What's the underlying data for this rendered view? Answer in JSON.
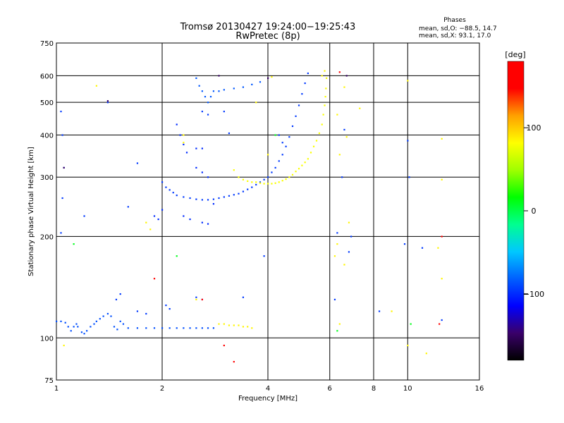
{
  "chart_data": {
    "type": "scatter",
    "title": "Tromsø 20130427 19:24:00−19:25:43",
    "subtitle": "RwPretec (8p)",
    "xlabel": "Frequency [MHz]",
    "ylabel": "Stationary phase Virtual Height [km]",
    "x_scale": "log",
    "y_scale": "log",
    "xlim": [
      1,
      16
    ],
    "ylim": [
      75,
      750
    ],
    "x_ticks": [
      {
        "value": 1,
        "label": "1"
      },
      {
        "value": 2,
        "label": "2"
      },
      {
        "value": 4,
        "label": "4"
      },
      {
        "value": 6,
        "label": "6"
      },
      {
        "value": 8,
        "label": "8"
      },
      {
        "value": 10,
        "label": "10"
      },
      {
        "value": 16,
        "label": "16"
      }
    ],
    "y_ticks": [
      {
        "value": 75,
        "label": "75"
      },
      {
        "value": 100,
        "label": "100"
      },
      {
        "value": 200,
        "label": "200"
      },
      {
        "value": 300,
        "label": "300"
      },
      {
        "value": 400,
        "label": "400"
      },
      {
        "value": 500,
        "label": "500"
      },
      {
        "value": 600,
        "label": "600"
      },
      {
        "value": 750,
        "label": "750"
      }
    ],
    "grid": true,
    "phase_info": {
      "heading": "Phases",
      "line_o": "mean, sd,O: −88.5, 14.7",
      "line_x": "mean, sd,X:  93.1, 17.0"
    },
    "colorbar": {
      "label": "[deg]",
      "range": [
        -180,
        180
      ],
      "ticks": [
        {
          "value": 100,
          "label": "100"
        },
        {
          "value": 0,
          "label": "0"
        },
        {
          "value": -100,
          "label": "−100"
        }
      ],
      "stops": [
        "#000000",
        "#3a006a",
        "#0000ff",
        "#0060ff",
        "#00c8ff",
        "#00ff90",
        "#00ff00",
        "#a0ff00",
        "#ffff00",
        "#ffa000",
        "#ff0000",
        "#ff0000"
      ]
    },
    "series": [
      {
        "phase": -88,
        "points": [
          [
            1.0,
            112
          ],
          [
            1.03,
            112
          ],
          [
            1.06,
            111
          ],
          [
            1.08,
            108
          ],
          [
            1.1,
            105
          ],
          [
            1.12,
            108
          ],
          [
            1.14,
            110
          ],
          [
            1.15,
            108
          ],
          [
            1.18,
            104
          ],
          [
            1.2,
            103
          ],
          [
            1.22,
            105
          ],
          [
            1.25,
            108
          ],
          [
            1.28,
            110
          ],
          [
            1.3,
            112
          ],
          [
            1.33,
            114
          ],
          [
            1.36,
            116
          ],
          [
            1.4,
            118
          ],
          [
            1.43,
            116
          ],
          [
            1.46,
            108
          ],
          [
            1.49,
            106
          ],
          [
            1.52,
            112
          ],
          [
            1.55,
            110
          ],
          [
            1.6,
            107
          ],
          [
            1.7,
            107
          ],
          [
            1.8,
            107
          ],
          [
            1.9,
            107
          ],
          [
            2.0,
            107
          ],
          [
            2.1,
            107
          ],
          [
            2.2,
            107
          ],
          [
            2.3,
            107
          ],
          [
            2.4,
            107
          ],
          [
            2.5,
            107
          ],
          [
            2.6,
            107
          ],
          [
            2.7,
            107
          ],
          [
            2.8,
            107
          ]
        ]
      },
      {
        "phase": -95,
        "points": [
          [
            1.48,
            130
          ],
          [
            1.52,
            135
          ],
          [
            1.7,
            120
          ],
          [
            1.8,
            118
          ],
          [
            2.05,
            125
          ],
          [
            2.1,
            122
          ],
          [
            2.5,
            132
          ],
          [
            2.6,
            130
          ],
          [
            3.4,
            132
          ]
        ]
      },
      {
        "phase": -95,
        "points": [
          [
            2.0,
            290
          ],
          [
            2.05,
            280
          ],
          [
            2.1,
            275
          ],
          [
            2.15,
            270
          ],
          [
            2.2,
            265
          ],
          [
            2.3,
            262
          ],
          [
            2.4,
            260
          ],
          [
            2.5,
            258
          ],
          [
            2.6,
            257
          ],
          [
            2.7,
            257
          ],
          [
            2.8,
            258
          ],
          [
            2.9,
            260
          ],
          [
            3.0,
            262
          ],
          [
            3.1,
            264
          ],
          [
            3.2,
            266
          ],
          [
            3.3,
            268
          ],
          [
            3.4,
            272
          ],
          [
            3.5,
            276
          ],
          [
            3.6,
            280
          ],
          [
            3.7,
            285
          ],
          [
            3.8,
            290
          ],
          [
            3.9,
            295
          ],
          [
            4.0,
            300
          ],
          [
            4.1,
            310
          ],
          [
            4.2,
            320
          ],
          [
            4.3,
            335
          ],
          [
            4.4,
            350
          ],
          [
            4.5,
            370
          ],
          [
            4.6,
            395
          ],
          [
            4.7,
            425
          ],
          [
            4.8,
            455
          ],
          [
            4.9,
            490
          ],
          [
            5.0,
            530
          ],
          [
            5.1,
            570
          ],
          [
            5.2,
            610
          ]
        ]
      },
      {
        "phase": -85,
        "points": [
          [
            2.5,
            590
          ],
          [
            2.55,
            560
          ],
          [
            2.6,
            540
          ],
          [
            2.65,
            520
          ],
          [
            2.7,
            500
          ],
          [
            2.75,
            520
          ],
          [
            2.8,
            540
          ],
          [
            2.9,
            540
          ],
          [
            3.0,
            545
          ],
          [
            3.2,
            550
          ],
          [
            3.4,
            555
          ],
          [
            3.6,
            565
          ],
          [
            3.8,
            575
          ]
        ]
      },
      {
        "phase": -100,
        "points": [
          [
            2.2,
            430
          ],
          [
            2.25,
            400
          ],
          [
            2.3,
            375
          ],
          [
            2.35,
            355
          ],
          [
            2.5,
            365
          ],
          [
            2.6,
            365
          ],
          [
            2.5,
            320
          ],
          [
            2.6,
            310
          ],
          [
            2.7,
            300
          ],
          [
            2.3,
            230
          ],
          [
            2.4,
            225
          ],
          [
            2.6,
            220
          ],
          [
            2.7,
            218
          ],
          [
            1.9,
            230
          ],
          [
            1.95,
            225
          ],
          [
            2.0,
            240
          ],
          [
            2.8,
            250
          ]
        ]
      },
      {
        "phase": -95,
        "points": [
          [
            1.03,
            205
          ],
          [
            1.04,
            260
          ],
          [
            1.05,
            320
          ],
          [
            1.04,
            400
          ],
          [
            1.03,
            470
          ],
          [
            1.4,
            500
          ],
          [
            1.6,
            245
          ],
          [
            1.7,
            330
          ],
          [
            1.2,
            230
          ],
          [
            2.6,
            470
          ],
          [
            2.7,
            460
          ],
          [
            3.0,
            470
          ],
          [
            3.1,
            405
          ],
          [
            3.9,
            175
          ],
          [
            4.3,
            400
          ],
          [
            4.4,
            380
          ],
          [
            6.3,
            205
          ],
          [
            6.5,
            300
          ],
          [
            6.6,
            415
          ],
          [
            6.9,
            200
          ],
          [
            6.8,
            180
          ],
          [
            6.2,
            130
          ],
          [
            8.3,
            120
          ],
          [
            9.8,
            190
          ],
          [
            10.0,
            385
          ],
          [
            10.1,
            300
          ],
          [
            11.0,
            185
          ],
          [
            12.5,
            113
          ]
        ]
      },
      {
        "phase": -150,
        "points": [
          [
            1.05,
            320
          ],
          [
            2.9,
            600
          ],
          [
            4.0,
            590
          ],
          [
            6.7,
            600
          ],
          [
            1.4,
            505
          ]
        ]
      },
      {
        "phase": 80,
        "points": [
          [
            3.2,
            315
          ],
          [
            3.3,
            300
          ],
          [
            3.4,
            295
          ],
          [
            3.5,
            292
          ],
          [
            3.6,
            290
          ],
          [
            3.7,
            290
          ],
          [
            3.8,
            288
          ],
          [
            3.9,
            287
          ],
          [
            4.0,
            287
          ],
          [
            4.1,
            287
          ],
          [
            4.2,
            288
          ],
          [
            4.3,
            290
          ],
          [
            4.4,
            293
          ],
          [
            4.5,
            296
          ],
          [
            4.6,
            300
          ],
          [
            4.7,
            305
          ],
          [
            4.8,
            312
          ],
          [
            4.9,
            318
          ],
          [
            5.0,
            325
          ],
          [
            5.1,
            332
          ],
          [
            5.2,
            340
          ],
          [
            5.3,
            355
          ],
          [
            5.4,
            370
          ],
          [
            5.5,
            385
          ],
          [
            5.6,
            405
          ],
          [
            5.7,
            430
          ],
          [
            5.75,
            460
          ],
          [
            5.8,
            490
          ],
          [
            5.83,
            520
          ],
          [
            5.85,
            550
          ],
          [
            5.87,
            590
          ]
        ]
      },
      {
        "phase": 85,
        "points": [
          [
            2.9,
            110
          ],
          [
            3.0,
            110
          ],
          [
            3.1,
            109
          ],
          [
            3.2,
            109
          ],
          [
            3.3,
            109
          ],
          [
            3.4,
            108
          ],
          [
            3.5,
            108
          ],
          [
            3.6,
            107
          ],
          [
            2.3,
            400
          ],
          [
            2.3,
            380
          ],
          [
            2.5,
            130
          ],
          [
            1.85,
            210
          ],
          [
            1.8,
            220
          ],
          [
            1.3,
            560
          ],
          [
            4.1,
            595
          ],
          [
            5.7,
            600
          ],
          [
            5.8,
            620
          ],
          [
            6.6,
            555
          ],
          [
            6.3,
            460
          ],
          [
            6.7,
            395
          ],
          [
            6.2,
            175
          ],
          [
            6.3,
            190
          ],
          [
            6.4,
            110
          ],
          [
            6.6,
            165
          ],
          [
            7.3,
            480
          ],
          [
            9.0,
            120
          ],
          [
            10.0,
            580
          ],
          [
            10.0,
            95
          ],
          [
            11.3,
            90
          ],
          [
            12.2,
            185
          ],
          [
            12.5,
            150
          ],
          [
            12.5,
            390
          ],
          [
            12.5,
            295
          ],
          [
            1.05,
            95
          ],
          [
            3.7,
            500
          ],
          [
            4.0,
            350
          ],
          [
            6.4,
            350
          ],
          [
            6.8,
            220
          ]
        ]
      },
      {
        "phase": 170,
        "points": [
          [
            6.4,
            615
          ],
          [
            2.6,
            130
          ],
          [
            12.3,
            110
          ],
          [
            12.5,
            200
          ],
          [
            3.0,
            95
          ],
          [
            1.9,
            150
          ],
          [
            3.2,
            85
          ]
        ]
      },
      {
        "phase": 10,
        "points": [
          [
            1.12,
            190
          ],
          [
            2.2,
            175
          ],
          [
            4.2,
            400
          ],
          [
            10.2,
            110
          ],
          [
            6.3,
            105
          ]
        ]
      }
    ]
  }
}
